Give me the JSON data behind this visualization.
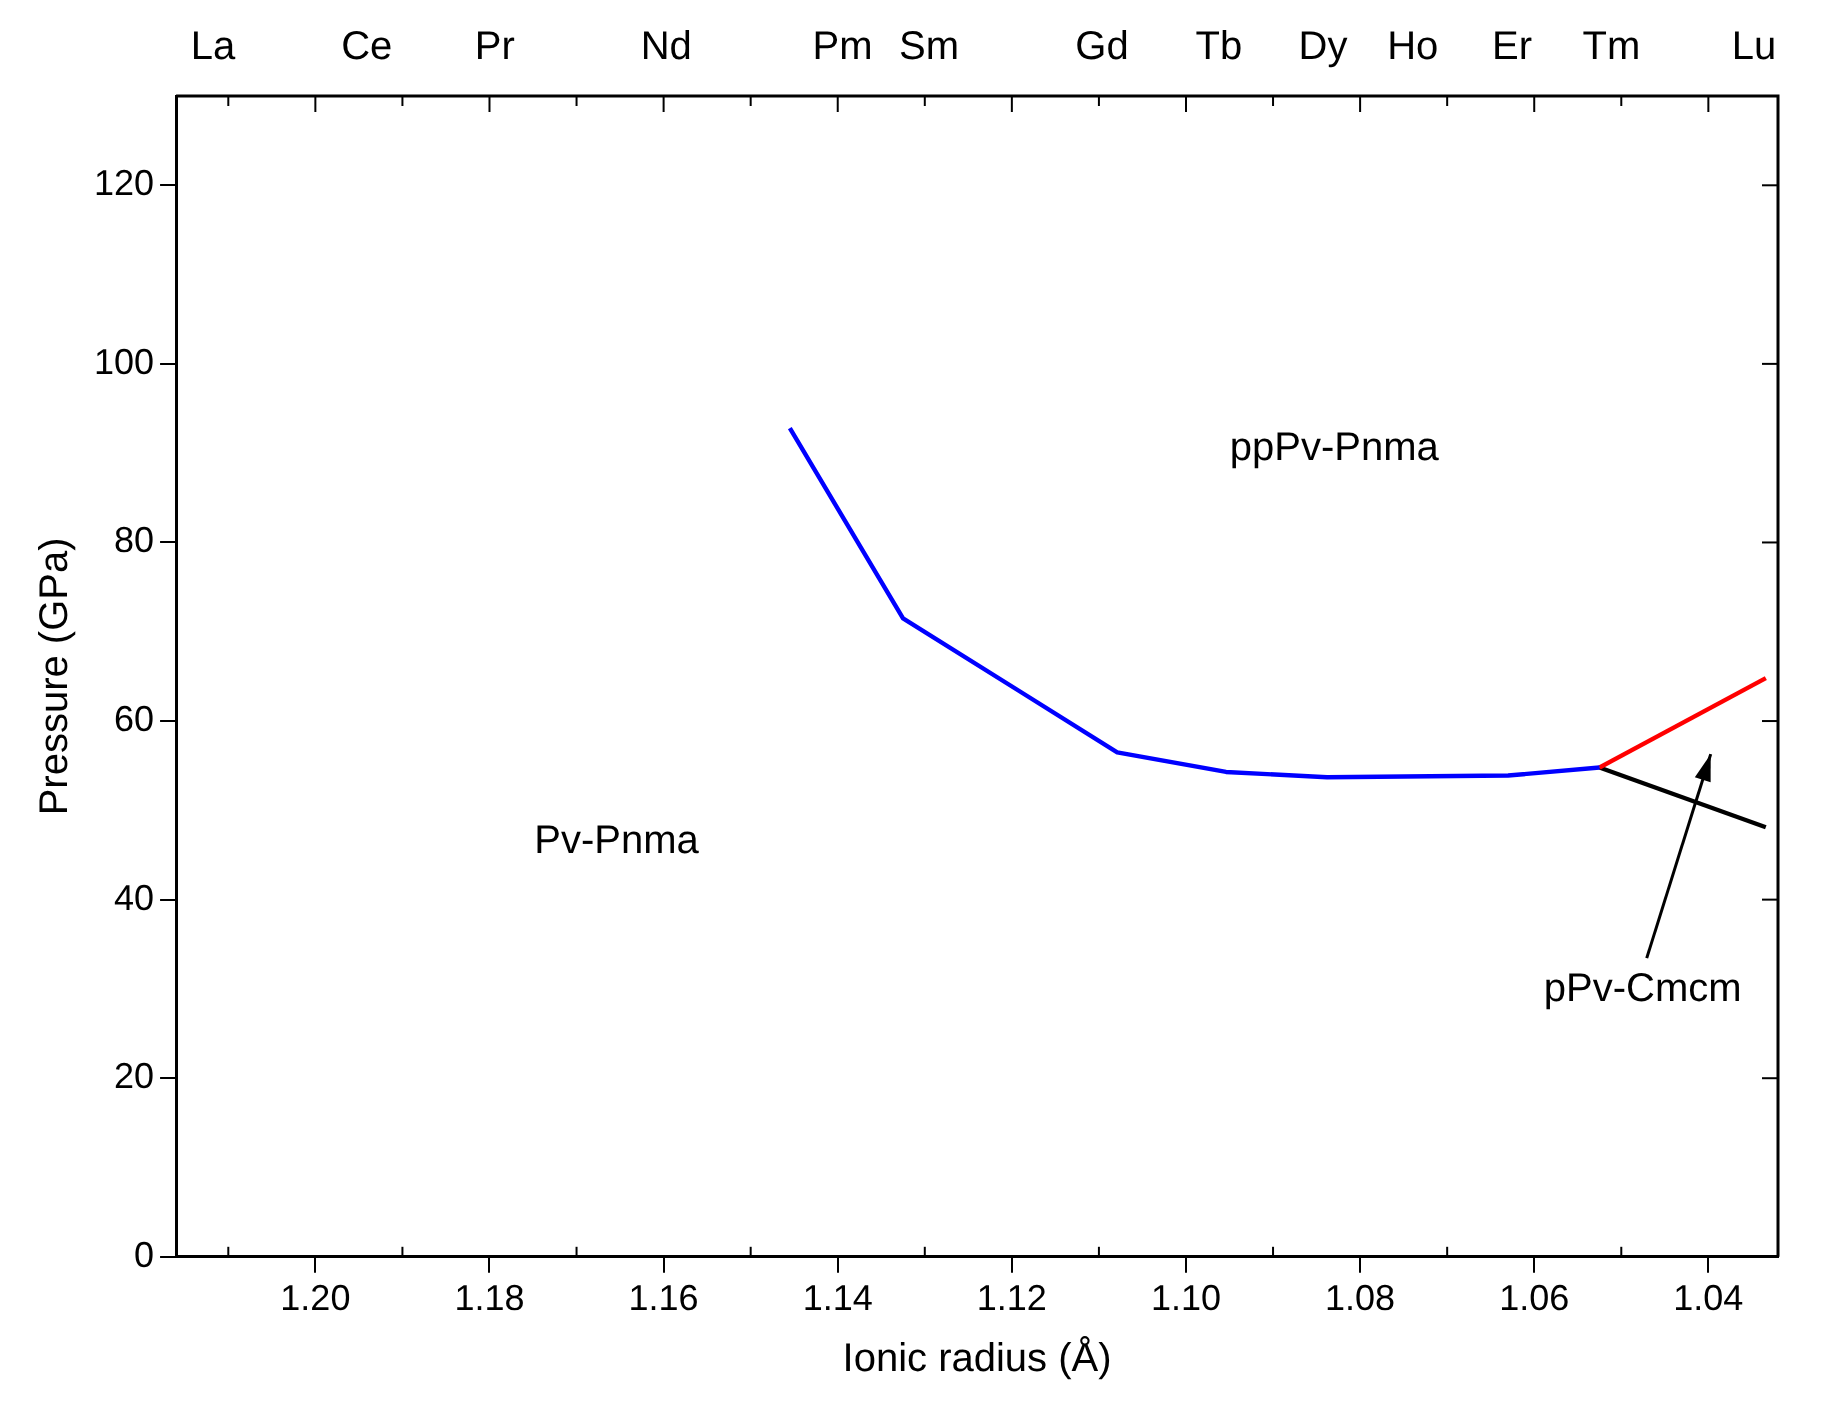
{
  "chart_data": {
    "type": "line",
    "xlabel": "Ionic radius (Å)",
    "ylabel": "Pressure (GPa)",
    "xlim": [
      1.216,
      1.032
    ],
    "ylim": [
      0,
      130
    ],
    "xticks": [
      {
        "value": 1.2,
        "label": "1.20"
      },
      1.18,
      1.16,
      1.14,
      1.12,
      {
        "value": 1.1,
        "label": "1.10"
      },
      1.08,
      1.06,
      1.04
    ],
    "yticks": [
      0,
      20,
      40,
      60,
      80,
      100,
      120
    ],
    "series": [
      {
        "color": "#0000ff",
        "x": [
          1.1455,
          1.1325,
          1.1079,
          1.0954,
          1.0838,
          1.063,
          1.0525
        ],
        "values": [
          92.8,
          71.5,
          56.5,
          54.3,
          53.7,
          53.9,
          54.8
        ]
      },
      {
        "color": "#ff0000",
        "x": [
          1.0525,
          1.0334
        ],
        "values": [
          54.8,
          64.8
        ]
      },
      {
        "color": "#000000",
        "x": [
          1.0525,
          1.0334
        ],
        "values": [
          54.8,
          48.1
        ]
      }
    ],
    "annotations": [
      "La",
      "Ce",
      "Pr",
      "Nd",
      "Pm",
      "Sm",
      "Gd",
      "Tb",
      "Dy",
      "Ho",
      "Er",
      "Tm",
      "Lu",
      "ppPv-Pnma",
      "Pv-Pnma",
      "pPv-Cmcm"
    ],
    "grid": false,
    "legend": false,
    "marker": "none",
    "line_style": "solid"
  }
}
